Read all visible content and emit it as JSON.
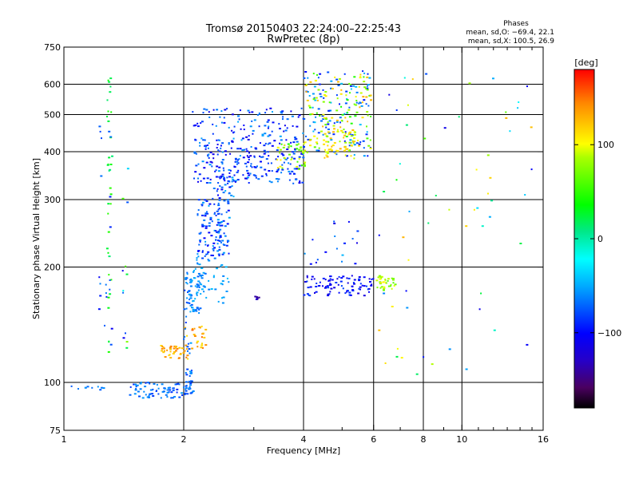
{
  "header": {
    "title": "Tromsø 20150403 22:24:00–22:25:43",
    "subtitle": "RwPretec (8p)"
  },
  "stats": {
    "heading": "Phases",
    "line_o": "mean, sd,O: −69.4, 22.1",
    "line_x": "mean, sd,X: 100.5, 26.9"
  },
  "colorbar": {
    "unit": "[deg]",
    "ticks": [
      {
        "value": 100,
        "label": "100"
      },
      {
        "value": 0,
        "label": "0"
      },
      {
        "value": -100,
        "label": "−100"
      }
    ],
    "range": [
      -180,
      180
    ]
  },
  "chart_data": {
    "type": "scatter",
    "title": "Tromsø 20150403 22:24:00–22:25:43",
    "subtitle": "RwPretec (8p)",
    "xlabel": "Frequency [MHz]",
    "ylabel": "Stationary phase Virtual Height [km]",
    "x_scale": "log",
    "y_scale": "log",
    "xlim": [
      1,
      16
    ],
    "ylim": [
      75,
      750
    ],
    "x_ticks": [
      {
        "value": 1,
        "label": "1"
      },
      {
        "value": 2,
        "label": "2"
      },
      {
        "value": 4,
        "label": "4"
      },
      {
        "value": 6,
        "label": "6"
      },
      {
        "value": 8,
        "label": "8"
      },
      {
        "value": 10,
        "label": "10"
      },
      {
        "value": 16,
        "label": "16"
      }
    ],
    "y_ticks": [
      {
        "value": 75,
        "label": "75"
      },
      {
        "value": 100,
        "label": "100"
      },
      {
        "value": 200,
        "label": "200"
      },
      {
        "value": 300,
        "label": "300"
      },
      {
        "value": 400,
        "label": "400"
      },
      {
        "value": 500,
        "label": "500"
      },
      {
        "value": 600,
        "label": "600"
      },
      {
        "value": 750,
        "label": "750"
      }
    ],
    "x_minor_ticks": [
      3,
      5,
      7,
      9,
      11,
      12,
      13,
      14,
      15
    ],
    "grid": true,
    "x_gridlines": [
      2,
      4,
      6,
      8,
      10
    ],
    "y_gridlines": [
      100,
      200,
      300,
      400,
      500,
      600
    ],
    "colorbar_label": "[deg]",
    "color_range": [
      -180,
      180
    ],
    "clusters": [
      {
        "f": [
          1.03,
          1.3
        ],
        "h": [
          94,
          98
        ],
        "phase": [
          -80,
          -55
        ],
        "n": 10
      },
      {
        "f": [
          1.45,
          2.0
        ],
        "h": [
          91,
          100
        ],
        "phase": [
          -90,
          -55
        ],
        "n": 70
      },
      {
        "f": [
          2.0,
          2.12
        ],
        "h": [
          93,
          101
        ],
        "phase": [
          -85,
          -55
        ],
        "n": 22
      },
      {
        "f": [
          1.75,
          2.05
        ],
        "h": [
          115,
          125
        ],
        "phase": [
          110,
          150
        ],
        "n": 38
      },
      {
        "f": [
          2.0,
          2.28
        ],
        "h": [
          122,
          140
        ],
        "phase": [
          110,
          160
        ],
        "n": 26
      },
      {
        "f": [
          2.0,
          2.1
        ],
        "h": [
          100,
          200
        ],
        "phase": [
          -85,
          -50
        ],
        "n": 48
      },
      {
        "f": [
          2.05,
          2.2
        ],
        "h": [
          150,
          205
        ],
        "phase": [
          -75,
          -45
        ],
        "n": 40
      },
      {
        "f": [
          2.15,
          2.6
        ],
        "h": [
          160,
          210
        ],
        "phase": [
          -70,
          -40
        ],
        "n": 45
      },
      {
        "f": [
          2.15,
          2.6
        ],
        "h": [
          210,
          300
        ],
        "phase": [
          -105,
          -50
        ],
        "n": 130
      },
      {
        "f": [
          2.35,
          2.7
        ],
        "h": [
          300,
          345
        ],
        "phase": [
          -110,
          -45
        ],
        "n": 30
      },
      {
        "f": [
          2.1,
          4.0
        ],
        "h": [
          330,
          420
        ],
        "phase": [
          -115,
          -55
        ],
        "n": 210
      },
      {
        "f": [
          2.1,
          4.0
        ],
        "h": [
          420,
          520
        ],
        "phase": [
          -115,
          -50
        ],
        "n": 120
      },
      {
        "f": [
          3.4,
          4.1
        ],
        "h": [
          360,
          420
        ],
        "phase": [
          40,
          110
        ],
        "n": 40
      },
      {
        "f": [
          4.0,
          5.9
        ],
        "h": [
          390,
          650
        ],
        "phase": [
          -100,
          -40
        ],
        "n": 110
      },
      {
        "f": [
          4.0,
          5.9
        ],
        "h": [
          400,
          640
        ],
        "phase": [
          40,
          130
        ],
        "n": 130
      },
      {
        "f": [
          4.5,
          5.4
        ],
        "h": [
          380,
          460
        ],
        "phase": [
          80,
          130
        ],
        "n": 45
      },
      {
        "f": [
          4.0,
          6.0
        ],
        "h": [
          168,
          190
        ],
        "phase": [
          -120,
          -80
        ],
        "n": 95
      },
      {
        "f": [
          6.1,
          6.8
        ],
        "h": [
          174,
          190
        ],
        "phase": [
          60,
          110
        ],
        "n": 35
      },
      {
        "f": [
          3.0,
          3.1
        ],
        "h": [
          164,
          168
        ],
        "phase": [
          -150,
          -120
        ],
        "n": 8
      },
      {
        "f": [
          4.0,
          5.9
        ],
        "h": [
          200,
          265
        ],
        "phase": [
          -120,
          -40
        ],
        "n": 18
      },
      {
        "f": [
          1.28,
          1.32
        ],
        "h": [
          120,
          630
        ],
        "phase": [
          10,
          50
        ],
        "n": 35
      },
      {
        "f": [
          1.22,
          1.32
        ],
        "h": [
          120,
          480
        ],
        "phase": [
          -110,
          -60
        ],
        "n": 20
      },
      {
        "f": [
          1.4,
          1.46
        ],
        "h": [
          120,
          480
        ],
        "phase": [
          -110,
          80
        ],
        "n": 12
      },
      {
        "f": [
          6.0,
          15.0
        ],
        "h": [
          100,
          640
        ],
        "phase": [
          -120,
          130
        ],
        "n": 60
      }
    ]
  }
}
